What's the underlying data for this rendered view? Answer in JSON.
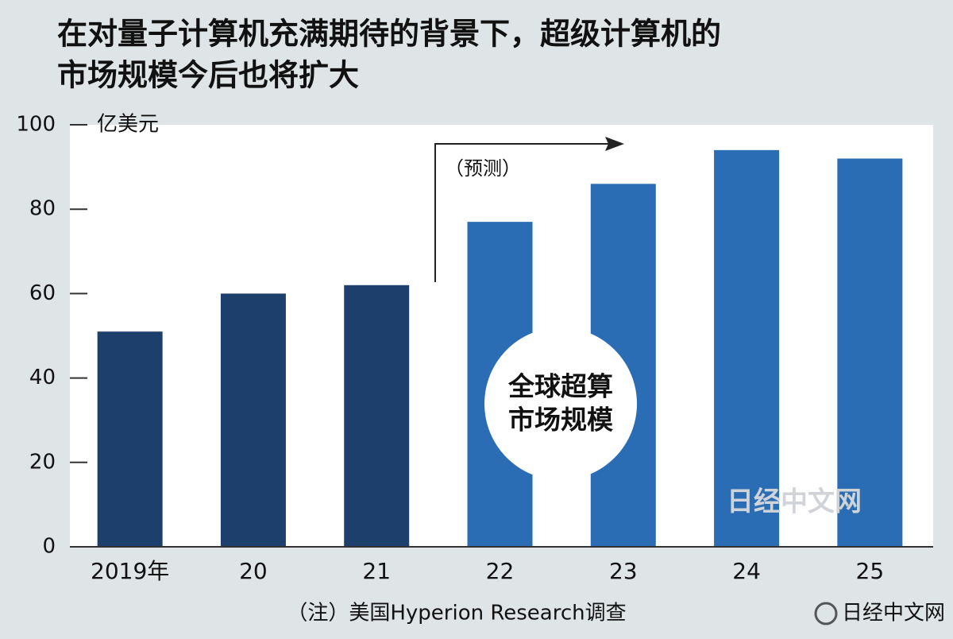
{
  "chart_data": {
    "type": "bar",
    "title": [
      "在对量子计算机充满期待的背景下，超级计算机的",
      "市场规模今后也将扩大"
    ],
    "y_unit": "亿美元",
    "categories": [
      "2019年",
      "20",
      "21",
      "22",
      "23",
      "24",
      "25"
    ],
    "values": [
      51,
      60,
      62,
      77,
      86,
      94,
      92
    ],
    "bar_colors": [
      "#1c3f6b",
      "#1c3f6b",
      "#1c3f6b",
      "#2b6db5",
      "#2b6db5",
      "#2b6db5",
      "#2b6db5"
    ],
    "ylim": [
      0,
      100
    ],
    "yticks": [
      0,
      20,
      40,
      60,
      80,
      100
    ],
    "grid": false,
    "forecast_label": "（预测）",
    "bubble_label": [
      "全球超算",
      "市场规模"
    ],
    "note": "（注）美国Hyperion Research调查",
    "watermark": "日经中文网",
    "source_mark": "日经中文网"
  }
}
